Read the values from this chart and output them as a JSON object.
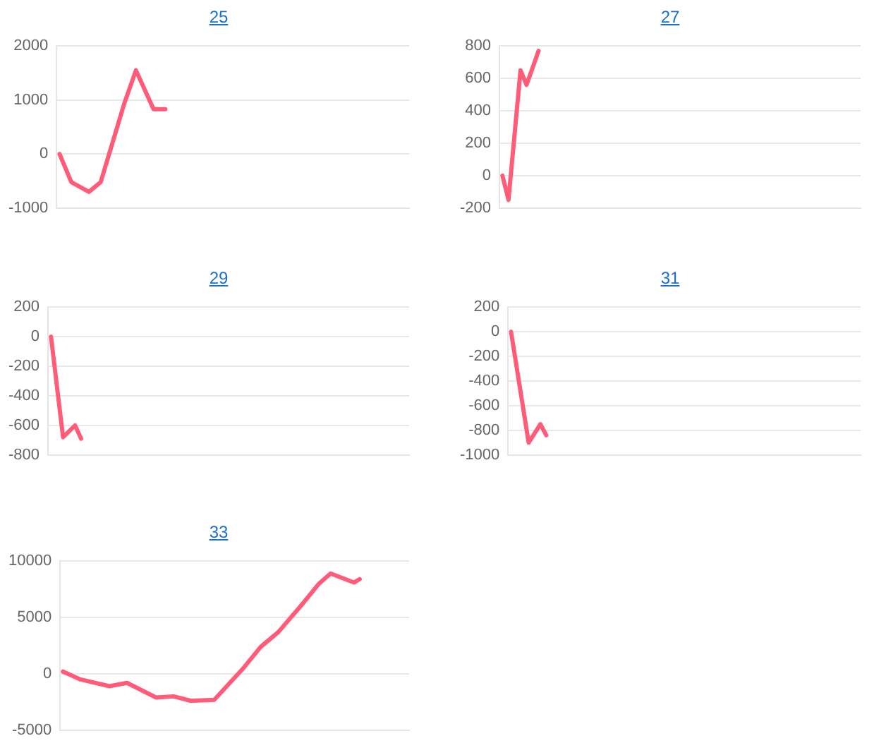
{
  "chart_data": [
    {
      "type": "line",
      "title": "25",
      "categories": [
        null,
        null,
        null,
        null,
        null,
        null,
        null,
        null,
        null,
        null,
        null,
        null,
        null,
        null,
        null,
        null,
        null,
        null,
        null,
        null,
        null,
        null,
        null,
        null,
        null,
        null,
        null,
        null,
        null,
        null,
        null,
        null,
        null,
        null,
        null,
        null,
        null,
        null,
        null,
        null,
        null,
        null,
        null,
        null,
        null,
        null,
        null,
        null,
        null,
        null,
        null,
        null,
        null,
        null,
        null,
        null,
        null,
        null,
        null,
        null
      ],
      "values": [
        0,
        null,
        -520,
        null,
        null,
        -700,
        null,
        -520,
        null,
        null,
        null,
        930,
        null,
        1550,
        null,
        null,
        830,
        null,
        830,
        null,
        null,
        null,
        null,
        null,
        null,
        null,
        null,
        null,
        null,
        null,
        null,
        null,
        null,
        null,
        null,
        null,
        null,
        null,
        null,
        null,
        null,
        null,
        null,
        null,
        null,
        null,
        null,
        null,
        null,
        null,
        null,
        null,
        null,
        null,
        null,
        null,
        null,
        null,
        null,
        null
      ],
      "color": "#ff5c7a",
      "ylim": [
        -1000,
        2000
      ],
      "yticks": [
        -1000,
        0,
        1000,
        2000
      ],
      "grid": "y",
      "tick_labels": "y",
      "marker": "none"
    },
    {
      "type": "line",
      "title": "27",
      "categories": [
        null,
        null,
        null,
        null,
        null,
        null,
        null,
        null,
        null,
        null,
        null,
        null,
        null,
        null,
        null,
        null,
        null,
        null,
        null,
        null,
        null,
        null,
        null,
        null,
        null,
        null,
        null,
        null,
        null,
        null,
        null,
        null,
        null,
        null,
        null,
        null,
        null,
        null,
        null,
        null,
        null,
        null,
        null,
        null,
        null,
        null,
        null,
        null,
        null,
        null,
        null,
        null,
        null,
        null,
        null,
        null,
        null,
        null,
        null,
        null
      ],
      "values": [
        0,
        -150,
        null,
        650,
        560,
        null,
        770,
        null,
        null,
        null,
        null,
        null,
        null,
        null,
        null,
        null,
        null,
        null,
        null,
        null,
        null,
        null,
        null,
        null,
        null,
        null,
        null,
        null,
        null,
        null,
        null,
        null,
        null,
        null,
        null,
        null,
        null,
        null,
        null,
        null,
        null,
        null,
        null,
        null,
        null,
        null,
        null,
        null,
        null,
        null,
        null,
        null,
        null,
        null,
        null,
        null,
        null,
        null,
        null,
        null
      ],
      "color": "#ff5c7a",
      "ylim": [
        -200,
        800
      ],
      "yticks": [
        -200,
        0,
        200,
        400,
        600,
        800
      ],
      "grid": "y",
      "tick_labels": "y",
      "marker": "none"
    },
    {
      "type": "line",
      "title": "29",
      "categories": [
        null,
        null,
        null,
        null,
        null,
        null,
        null,
        null,
        null,
        null,
        null,
        null,
        null,
        null,
        null,
        null,
        null,
        null,
        null,
        null,
        null,
        null,
        null,
        null,
        null,
        null,
        null,
        null,
        null,
        null,
        null,
        null,
        null,
        null,
        null,
        null,
        null,
        null,
        null,
        null,
        null,
        null,
        null,
        null,
        null,
        null,
        null,
        null,
        null,
        null,
        null,
        null,
        null,
        null,
        null,
        null,
        null,
        null,
        null,
        null
      ],
      "values": [
        0,
        null,
        -680,
        null,
        -600,
        -690,
        null,
        null,
        null,
        null,
        null,
        null,
        null,
        null,
        null,
        null,
        null,
        null,
        null,
        null,
        null,
        null,
        null,
        null,
        null,
        null,
        null,
        null,
        null,
        null,
        null,
        null,
        null,
        null,
        null,
        null,
        null,
        null,
        null,
        null,
        null,
        null,
        null,
        null,
        null,
        null,
        null,
        null,
        null,
        null,
        null,
        null,
        null,
        null,
        null,
        null,
        null,
        null,
        null,
        null
      ],
      "color": "#ff5c7a",
      "ylim": [
        -800,
        200
      ],
      "yticks": [
        -800,
        -600,
        -400,
        -200,
        0,
        200
      ],
      "grid": "y",
      "tick_labels": "y",
      "marker": "none"
    },
    {
      "type": "line",
      "title": "31",
      "categories": [
        null,
        null,
        null,
        null,
        null,
        null,
        null,
        null,
        null,
        null,
        null,
        null,
        null,
        null,
        null,
        null,
        null,
        null,
        null,
        null,
        null,
        null,
        null,
        null,
        null,
        null,
        null,
        null,
        null,
        null,
        null,
        null,
        null,
        null,
        null,
        null,
        null,
        null,
        null,
        null,
        null,
        null,
        null,
        null,
        null,
        null,
        null,
        null,
        null,
        null,
        null,
        null,
        null,
        null,
        null,
        null,
        null,
        null,
        null,
        null
      ],
      "values": [
        0,
        null,
        null,
        -900,
        null,
        -750,
        -840,
        null,
        null,
        null,
        null,
        null,
        null,
        null,
        null,
        null,
        null,
        null,
        null,
        null,
        null,
        null,
        null,
        null,
        null,
        null,
        null,
        null,
        null,
        null,
        null,
        null,
        null,
        null,
        null,
        null,
        null,
        null,
        null,
        null,
        null,
        null,
        null,
        null,
        null,
        null,
        null,
        null,
        null,
        null,
        null,
        null,
        null,
        null,
        null,
        null,
        null,
        null,
        null,
        null
      ],
      "color": "#ff5c7a",
      "ylim": [
        -1000,
        200
      ],
      "yticks": [
        -1000,
        -800,
        -600,
        -400,
        -200,
        0,
        200
      ],
      "grid": "y",
      "tick_labels": "y",
      "marker": "none"
    },
    {
      "type": "line",
      "title": "33",
      "categories": [
        null,
        null,
        null,
        null,
        null,
        null,
        null,
        null,
        null,
        null,
        null,
        null,
        null,
        null,
        null,
        null,
        null,
        null,
        null,
        null,
        null,
        null,
        null,
        null,
        null,
        null,
        null,
        null,
        null,
        null,
        null,
        null,
        null,
        null,
        null,
        null,
        null,
        null,
        null,
        null,
        null,
        null,
        null,
        null,
        null,
        null,
        null,
        null,
        null,
        null,
        null,
        null,
        null,
        null,
        null,
        null,
        null,
        null,
        null,
        null
      ],
      "values": [
        200,
        null,
        null,
        -500,
        null,
        null,
        null,
        null,
        -1100,
        null,
        null,
        -800,
        null,
        null,
        null,
        null,
        -2100,
        null,
        null,
        -2000,
        null,
        null,
        -2400,
        null,
        null,
        null,
        -2300,
        null,
        null,
        null,
        null,
        500,
        null,
        null,
        2400,
        null,
        null,
        3700,
        null,
        null,
        null,
        6100,
        null,
        null,
        8000,
        null,
        8900,
        null,
        null,
        null,
        8100,
        8400,
        null,
        null,
        null,
        null,
        null,
        null,
        null,
        null
      ],
      "color": "#ff5c7a",
      "ylim": [
        -5000,
        10000
      ],
      "yticks": [
        -5000,
        0,
        5000,
        10000
      ],
      "grid": "y",
      "tick_labels": "y",
      "marker": "none"
    }
  ]
}
